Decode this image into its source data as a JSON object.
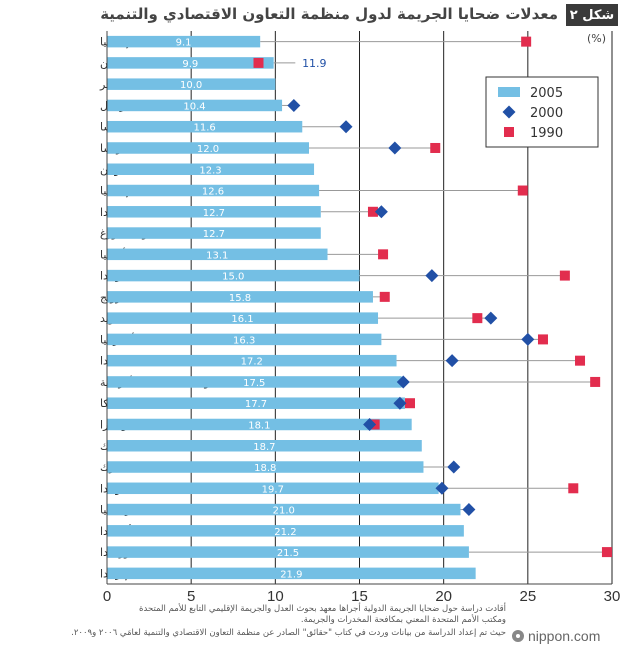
{
  "figure_label": "شكل ٢",
  "chart_data": {
    "type": "bar",
    "title": "معدلات ضحايا الجريمة لدول منظمة التعاون الاقتصادي والتنمية",
    "unit": "(%)",
    "xlim": [
      0,
      30
    ],
    "xticks": [
      0,
      5,
      10,
      15,
      20,
      25,
      30
    ],
    "categories": [
      "إسبانيا",
      "اليابان",
      "المجر",
      "البرتغال",
      "النمسا",
      "فرنسا",
      "اليونان",
      "إيطاليا",
      "فنلندا",
      "لوكسمبورغ",
      "ألمانيا",
      "بولندا",
      "النرويج",
      "السويد",
      "أستراليا",
      "كندا",
      "الولايات المتحدة الأمريكية",
      "بلجيكا",
      "سويسرا",
      "المكسيك",
      "الدنمارك",
      "هولندا",
      "بريطانيا",
      "أيسلندا",
      "نيوزيلندا",
      "إيرلندا"
    ],
    "series": [
      {
        "name": "2005",
        "kind": "bar",
        "color": "#74bfe4",
        "values": [
          9.1,
          9.9,
          10.0,
          10.4,
          11.6,
          12.0,
          12.3,
          12.6,
          12.7,
          12.7,
          13.1,
          15.0,
          15.8,
          16.1,
          16.3,
          17.2,
          17.5,
          17.7,
          18.1,
          18.7,
          18.8,
          19.7,
          21.0,
          21.2,
          21.5,
          21.9
        ],
        "labels": [
          "9.1",
          "9.9",
          "10.0",
          "10.4",
          "11.6",
          "12.0",
          "12.3",
          "12.6",
          "12.7",
          "12.7",
          "13.1",
          "15.0",
          "15.8",
          "16.1",
          "16.3",
          "17.2",
          "17.5",
          "17.7",
          "18.1",
          "18.7",
          "18.8",
          "19.7",
          "21.0",
          "21.2",
          "21.5",
          "21.9"
        ]
      },
      {
        "name": "2000",
        "kind": "diamond",
        "color": "#2150a6",
        "values": [
          null,
          null,
          null,
          11.1,
          14.2,
          17.1,
          null,
          null,
          16.3,
          null,
          null,
          19.3,
          null,
          22.8,
          25.0,
          20.5,
          17.6,
          17.4,
          15.6,
          null,
          20.6,
          19.9,
          21.5,
          null,
          null,
          null
        ]
      },
      {
        "name": "1990",
        "kind": "square",
        "color": "#e22d4e",
        "values": [
          24.9,
          9.0,
          null,
          null,
          null,
          19.5,
          null,
          24.7,
          15.8,
          null,
          16.4,
          27.2,
          16.5,
          22.0,
          25.9,
          28.1,
          29.0,
          18.0,
          15.9,
          null,
          null,
          27.7,
          null,
          null,
          29.7,
          null
        ]
      }
    ],
    "annotations": [
      {
        "category": "اليابان",
        "text": "11.9"
      }
    ],
    "legend": [
      "2005",
      "2000",
      "1990"
    ],
    "legend_position": "top-right"
  },
  "notes": [
    "أقادت دراسة حول ضحايا الجريمة الدولية أجراها معهد بحوث العدل والجريمة الإقليمي التابع للأمم المتحدة",
    "ومكتب الأمم المتحدة المعني بمكافحة المخدرات والجريمة.",
    "حيث تم إعداد الدراسة من بيانات وردت في كتاب \"حقائق\" الصادر عن منظمة التعاون الاقتصادي والتنمية لعامَي ٢٠٠٦ و٢٠٠٩."
  ],
  "brand": "nippon.com",
  "colors": {
    "bar": "#74bfe4",
    "diamond": "#2150a6",
    "square": "#e22d4e",
    "badge": "#3a3a3a"
  }
}
